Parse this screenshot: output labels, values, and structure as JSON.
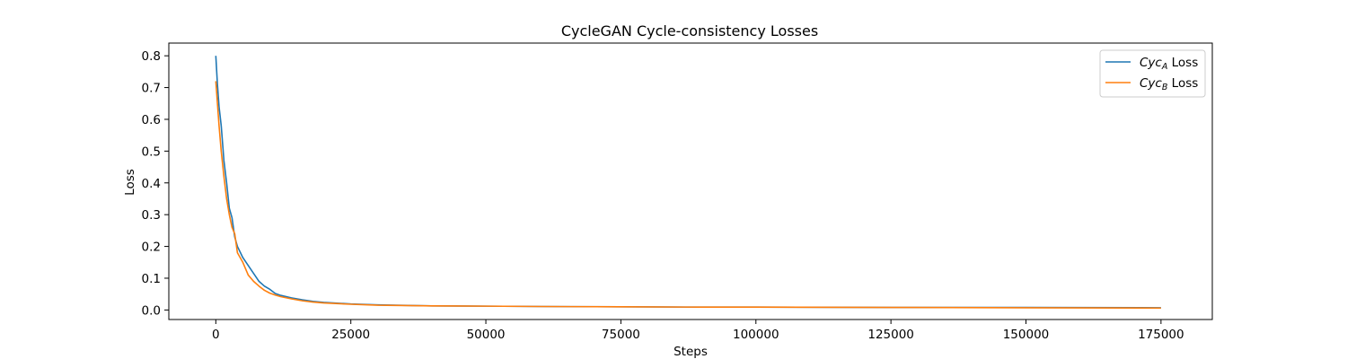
{
  "chart_data": {
    "type": "line",
    "title": "CycleGAN Cycle-consistency Losses",
    "xlabel": "Steps",
    "ylabel": "Loss",
    "xlim": [
      -8700,
      184500
    ],
    "ylim": [
      -0.03,
      0.84
    ],
    "x_ticks": [
      0,
      25000,
      50000,
      75000,
      100000,
      125000,
      150000,
      175000
    ],
    "x_tick_labels": [
      "0",
      "25000",
      "50000",
      "75000",
      "100000",
      "125000",
      "150000",
      "175000"
    ],
    "y_ticks": [
      0.0,
      0.1,
      0.2,
      0.3,
      0.4,
      0.5,
      0.6,
      0.7,
      0.8
    ],
    "y_tick_labels": [
      "0.0",
      "0.1",
      "0.2",
      "0.3",
      "0.4",
      "0.5",
      "0.6",
      "0.7",
      "0.8"
    ],
    "grid": false,
    "legend_position": "top-right",
    "legend": [
      {
        "base": "Cyc",
        "sub": "A",
        "suffix": " Loss"
      },
      {
        "base": "Cyc",
        "sub": "B",
        "suffix": " Loss"
      }
    ],
    "series": [
      {
        "name": "CycA Loss",
        "color": "#1f77b4",
        "x": [
          0,
          300,
          600,
          1000,
          1500,
          2000,
          2500,
          3000,
          3500,
          4000,
          5000,
          6000,
          7000,
          8000,
          9000,
          10000,
          11000,
          12000,
          14000,
          16000,
          18000,
          20000,
          25000,
          30000,
          40000,
          50000,
          60000,
          75000,
          90000,
          100000,
          125000,
          150000,
          175000
        ],
        "values": [
          0.8,
          0.71,
          0.64,
          0.58,
          0.47,
          0.4,
          0.32,
          0.29,
          0.23,
          0.2,
          0.165,
          0.14,
          0.115,
          0.09,
          0.075,
          0.065,
          0.052,
          0.046,
          0.038,
          0.032,
          0.027,
          0.024,
          0.019,
          0.016,
          0.013,
          0.012,
          0.011,
          0.01,
          0.009,
          0.009,
          0.008,
          0.008,
          0.007
        ]
      },
      {
        "name": "CycB Loss",
        "color": "#ff7f0e",
        "x": [
          0,
          300,
          600,
          1000,
          1500,
          2000,
          2500,
          3000,
          3500,
          4000,
          5000,
          6000,
          7000,
          8000,
          9000,
          10000,
          11000,
          12000,
          14000,
          16000,
          18000,
          20000,
          25000,
          30000,
          40000,
          50000,
          60000,
          75000,
          90000,
          100000,
          125000,
          150000,
          175000
        ],
        "values": [
          0.72,
          0.65,
          0.58,
          0.5,
          0.42,
          0.35,
          0.3,
          0.26,
          0.24,
          0.18,
          0.15,
          0.11,
          0.09,
          0.075,
          0.062,
          0.053,
          0.047,
          0.042,
          0.035,
          0.029,
          0.025,
          0.022,
          0.018,
          0.015,
          0.013,
          0.012,
          0.011,
          0.01,
          0.009,
          0.009,
          0.008,
          0.007,
          0.006
        ]
      }
    ]
  }
}
